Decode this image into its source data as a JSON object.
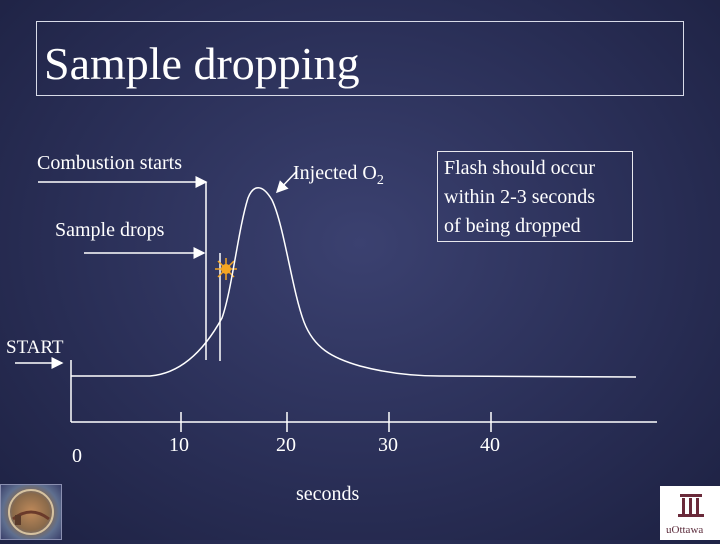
{
  "title": "Sample dropping",
  "labels": {
    "combustion": "Combustion starts",
    "injected_prefix": "Injected O",
    "injected_sub": "2",
    "sample_drops": "Sample drops",
    "start": "START",
    "xlabel": "seconds"
  },
  "note": [
    "Flash should occur",
    "within 2-3 seconds",
    "of being dropped"
  ],
  "ticks": [
    "0",
    "10",
    "20",
    "30",
    "40"
  ],
  "logos": {
    "right_wordmark": "uOttawa"
  },
  "colors": {
    "line": "#ffffff",
    "flash": "#f5a623"
  }
}
